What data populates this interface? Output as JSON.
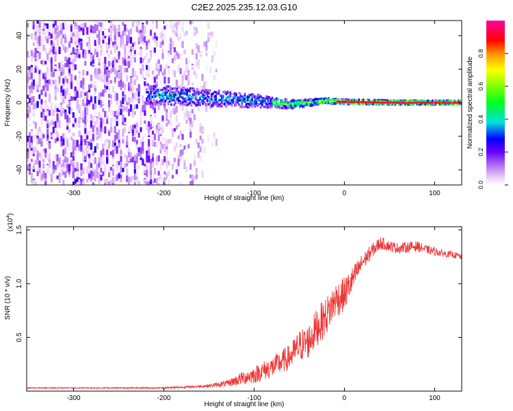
{
  "figure": {
    "title": "C2E2.2025.235.12.03.G10"
  },
  "chart_data": [
    {
      "type": "heatmap",
      "title": "C2E2.2025.235.12.03.G10",
      "xlabel": "Height of straight line (km)",
      "ylabel": "Frequency (Hz)",
      "xlim": [
        -352,
        130
      ],
      "ylim": [
        -49,
        49
      ],
      "xticks": [
        -300,
        -200,
        -100,
        0,
        100
      ],
      "yticks": [
        -40,
        -20,
        0,
        20,
        40
      ],
      "colorbar": {
        "label": "Normalized spectral amplitude",
        "range": [
          0,
          1
        ],
        "ticks": [
          0.0,
          0.2,
          0.4,
          0.6,
          0.8
        ]
      },
      "description_series": [
        {
          "name": "noise region",
          "x_range": [
            -352,
            -140
          ],
          "freq_range": [
            -49,
            49
          ],
          "amplitude_range": [
            0.0,
            0.25
          ]
        },
        {
          "name": "signal band",
          "x_range": [
            -220,
            130
          ],
          "center_freq": [
            5,
            4,
            3,
            2,
            1,
            0,
            -1,
            0,
            1,
            0.5,
            0,
            0
          ],
          "center_x": [
            -220,
            -190,
            -160,
            -130,
            -100,
            -80,
            -60,
            -40,
            -20,
            0,
            60,
            130
          ],
          "half_width": [
            6,
            5.5,
            5,
            4.5,
            4,
            3,
            2.5,
            2,
            1.5,
            1.5,
            1.2,
            1.2
          ]
        }
      ]
    },
    {
      "type": "line",
      "xlabel": "Height of straight line (km)",
      "ylabel": "SNR (10 * v/v)",
      "scale_note": "(x10",
      "scale_exp": "4",
      "scale_close": ")",
      "xlim": [
        -352,
        130
      ],
      "ylim": [
        0,
        1.53
      ],
      "xticks": [
        -300,
        -200,
        -100,
        0,
        100
      ],
      "yticks": [
        0.5,
        1.0,
        1.5
      ],
      "ytick_labels": [
        "0.5",
        "1.0",
        "1.5"
      ],
      "series": [
        {
          "name": "SNR",
          "color": "#ee3333",
          "x": [
            -352,
            -300,
            -250,
            -200,
            -170,
            -150,
            -130,
            -120,
            -110,
            -100,
            -90,
            -80,
            -70,
            -60,
            -50,
            -40,
            -30,
            -20,
            -10,
            0,
            10,
            20,
            30,
            40,
            50,
            60,
            70,
            80,
            90,
            100,
            110,
            120,
            130
          ],
          "mean": [
            0.03,
            0.03,
            0.03,
            0.03,
            0.04,
            0.05,
            0.07,
            0.1,
            0.13,
            0.15,
            0.19,
            0.22,
            0.27,
            0.32,
            0.42,
            0.46,
            0.6,
            0.7,
            0.85,
            0.9,
            1.05,
            1.2,
            1.3,
            1.38,
            1.35,
            1.33,
            1.34,
            1.35,
            1.32,
            1.3,
            1.28,
            1.27,
            1.25
          ],
          "noise": [
            0.005,
            0.005,
            0.006,
            0.008,
            0.01,
            0.015,
            0.03,
            0.05,
            0.07,
            0.08,
            0.09,
            0.1,
            0.11,
            0.12,
            0.15,
            0.16,
            0.18,
            0.18,
            0.17,
            0.16,
            0.12,
            0.08,
            0.07,
            0.06,
            0.05,
            0.05,
            0.05,
            0.05,
            0.04,
            0.04,
            0.03,
            0.03,
            0.03
          ]
        }
      ]
    }
  ]
}
